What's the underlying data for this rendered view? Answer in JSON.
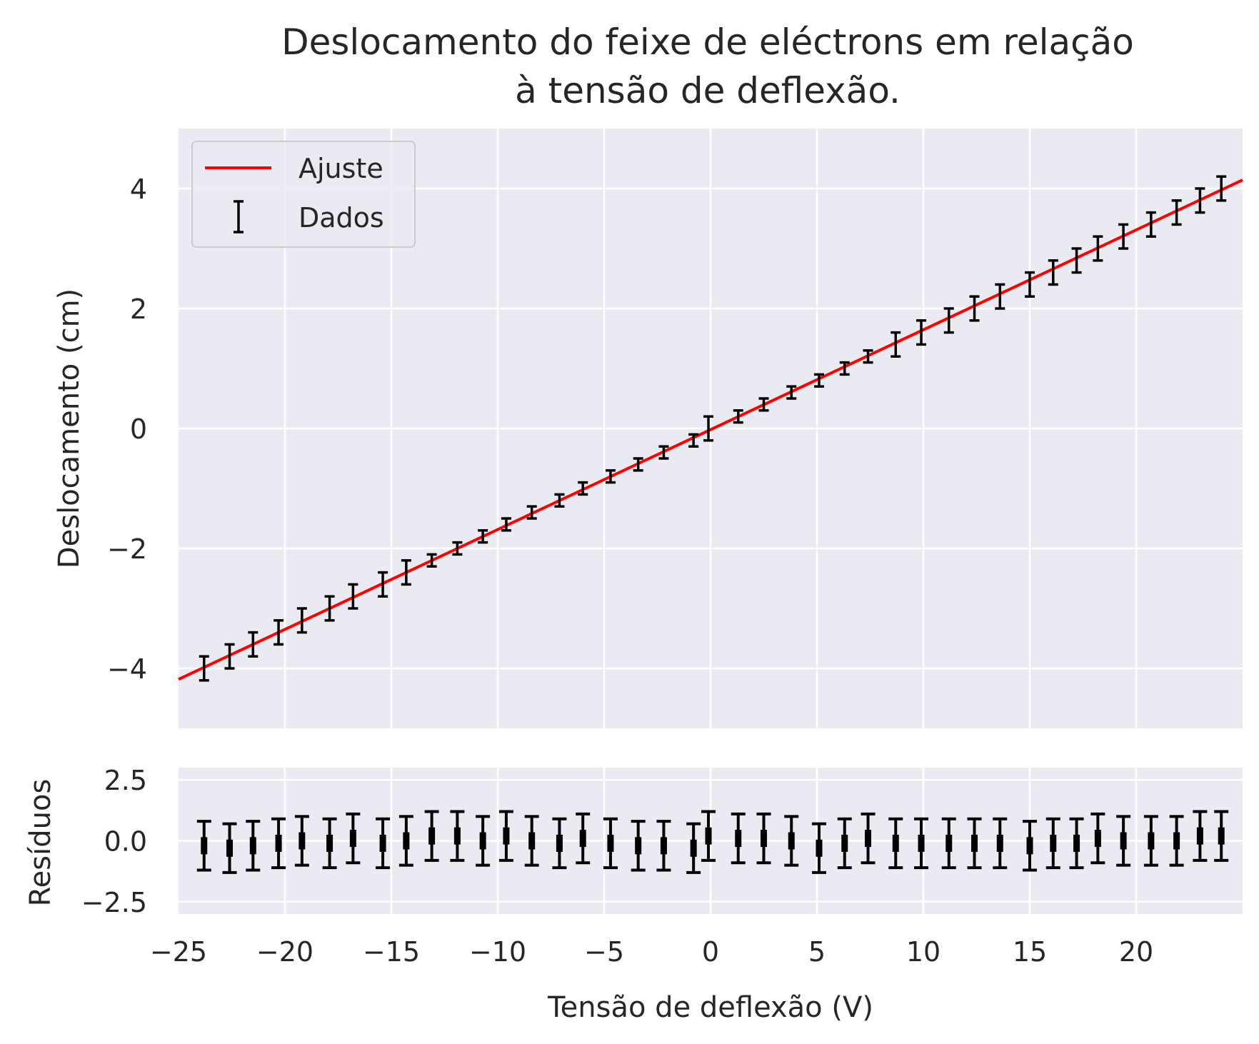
{
  "chart_data": [
    {
      "type": "scatter",
      "title": "Deslocamento do feixe de eléctrons em relação\nà tensão de deflexão.",
      "xlabel": "",
      "ylabel": "Deslocamento (cm)",
      "xlim": [
        -25,
        25
      ],
      "ylim": [
        -5,
        5
      ],
      "y_ticks": [
        -4,
        -2,
        0,
        2,
        4
      ],
      "y_tick_labels": [
        "−4",
        "−2",
        "0",
        "2",
        "4"
      ],
      "x_ticks": [
        -20,
        -15,
        -10,
        -5,
        0,
        5,
        10,
        15,
        20
      ],
      "grid": true,
      "legend": {
        "placement": "upper-left",
        "entries": [
          {
            "label": "Ajuste",
            "kind": "line",
            "color": "#ff0000"
          },
          {
            "label": "Dados",
            "kind": "errorbar",
            "color": "#000000"
          }
        ]
      },
      "fit": {
        "name": "Ajuste",
        "color": "#ff0000",
        "slope": 0.1665,
        "intercept": -0.02
      },
      "series": [
        {
          "name": "Dados",
          "color": "#000000",
          "x": [
            -23.8,
            -22.6,
            -21.5,
            -20.3,
            -19.2,
            -17.9,
            -16.8,
            -15.4,
            -14.3,
            -13.1,
            -11.9,
            -10.7,
            -9.6,
            -8.4,
            -7.1,
            -6.0,
            -4.7,
            -3.4,
            -2.2,
            -0.8,
            -0.1,
            1.3,
            2.5,
            3.8,
            5.1,
            6.3,
            7.4,
            8.7,
            9.9,
            11.2,
            12.4,
            13.6,
            15.0,
            16.1,
            17.2,
            18.2,
            19.4,
            20.7,
            21.9,
            23.0,
            24.0
          ],
          "y": [
            -4.0,
            -3.8,
            -3.6,
            -3.4,
            -3.2,
            -3.0,
            -2.8,
            -2.6,
            -2.4,
            -2.2,
            -2.0,
            -1.8,
            -1.6,
            -1.4,
            -1.2,
            -1.0,
            -0.8,
            -0.6,
            -0.4,
            -0.2,
            0.0,
            0.2,
            0.4,
            0.6,
            0.8,
            1.0,
            1.2,
            1.4,
            1.6,
            1.8,
            2.0,
            2.2,
            2.4,
            2.6,
            2.8,
            3.0,
            3.2,
            3.4,
            3.6,
            3.8,
            4.0
          ],
          "yerr": [
            0.2,
            0.2,
            0.2,
            0.2,
            0.2,
            0.2,
            0.2,
            0.2,
            0.2,
            0.1,
            0.1,
            0.1,
            0.1,
            0.1,
            0.1,
            0.1,
            0.1,
            0.1,
            0.1,
            0.1,
            0.2,
            0.1,
            0.1,
            0.1,
            0.1,
            0.1,
            0.1,
            0.2,
            0.2,
            0.2,
            0.2,
            0.2,
            0.2,
            0.2,
            0.2,
            0.2,
            0.2,
            0.2,
            0.2,
            0.2,
            0.2
          ]
        }
      ]
    },
    {
      "type": "scatter",
      "title": "",
      "xlabel": "Tensão de deflexão (V)",
      "ylabel": "Resíduos",
      "xlim": [
        -25,
        25
      ],
      "ylim": [
        -3,
        3
      ],
      "y_ticks": [
        -2.5,
        0.0,
        2.5
      ],
      "y_tick_labels": [
        "−2.5",
        "0.0",
        "2.5"
      ],
      "x_ticks": [
        -25,
        -20,
        -15,
        -10,
        -5,
        0,
        5,
        10,
        15,
        20
      ],
      "x_tick_labels": [
        "−25",
        "−20",
        "−15",
        "−10",
        "−5",
        "0",
        "5",
        "10",
        "15",
        "20"
      ],
      "grid": true,
      "series": [
        {
          "name": "Resíduos",
          "color": "#000000",
          "x": [
            -23.8,
            -22.6,
            -21.5,
            -20.3,
            -19.2,
            -17.9,
            -16.8,
            -15.4,
            -14.3,
            -13.1,
            -11.9,
            -10.7,
            -9.6,
            -8.4,
            -7.1,
            -6.0,
            -4.7,
            -3.4,
            -2.2,
            -0.8,
            -0.1,
            1.3,
            2.5,
            3.8,
            5.1,
            6.3,
            7.4,
            8.7,
            9.9,
            11.2,
            12.4,
            13.6,
            15.0,
            16.1,
            17.2,
            18.2,
            19.4,
            20.7,
            21.9,
            23.0,
            24.0
          ],
          "y": [
            -0.2,
            -0.3,
            -0.2,
            -0.1,
            0.0,
            -0.1,
            0.1,
            -0.1,
            0.0,
            0.2,
            0.2,
            0.0,
            0.2,
            0.0,
            -0.1,
            0.1,
            -0.1,
            -0.2,
            -0.2,
            -0.3,
            0.2,
            0.1,
            0.1,
            0.0,
            -0.3,
            -0.1,
            0.1,
            -0.1,
            -0.1,
            -0.1,
            -0.1,
            -0.1,
            -0.2,
            -0.1,
            -0.1,
            0.1,
            0.0,
            0.0,
            0.0,
            0.2,
            0.2
          ],
          "yerr": [
            1.0,
            1.0,
            1.0,
            1.0,
            1.0,
            1.0,
            1.0,
            1.0,
            1.0,
            1.0,
            1.0,
            1.0,
            1.0,
            1.0,
            1.0,
            1.0,
            1.0,
            1.0,
            1.0,
            1.0,
            1.0,
            1.0,
            1.0,
            1.0,
            1.0,
            1.0,
            1.0,
            1.0,
            1.0,
            1.0,
            1.0,
            1.0,
            1.0,
            1.0,
            1.0,
            1.0,
            1.0,
            1.0,
            1.0,
            1.0,
            1.0
          ]
        }
      ]
    }
  ]
}
